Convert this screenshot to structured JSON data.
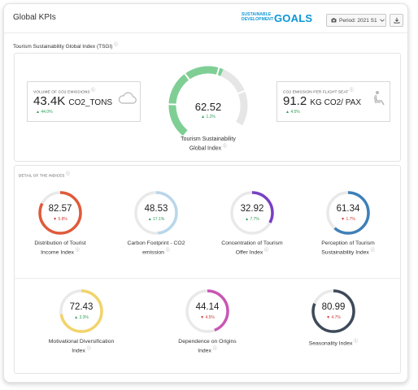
{
  "header": {
    "title": "Global KPIs",
    "logo_line1": "SUSTAINABLE",
    "logo_line2": "DEVELOPMENT",
    "logo_goals": "GOALS",
    "period_label": "Period: 2021 S1"
  },
  "tsgi": {
    "section_title": "Tourism Sustainability Global Index (TSGI)",
    "co2_total": {
      "label": "VOLUME OF CO2 EMISSIONS",
      "value": "43.4K",
      "unit": "CO2_TONS",
      "delta": "44.0%",
      "direction": "up"
    },
    "gauge": {
      "value": "62.52",
      "delta": "1.2%",
      "direction": "up",
      "label_line1": "Tourism Sustainability",
      "label_line2": "Global Index",
      "fraction": 0.6252
    },
    "co2_seat": {
      "label": "CO2 EMISSION PER FLIGHT SEAT",
      "value": "91.2",
      "unit": "KG CO2/ PAX",
      "delta": "4.5%",
      "direction": "up"
    }
  },
  "detail": {
    "section_title": "DETAIL OF THE INDICES",
    "row1": [
      {
        "value": "82.57",
        "delta": "5.8%",
        "direction": "down",
        "label_line1": "Distribution of Tourist",
        "label_line2": "Income Index",
        "color": "#e05a3a"
      },
      {
        "value": "48.53",
        "delta": "17.1%",
        "direction": "up",
        "label_line1": "Carbon Footprint - CO2",
        "label_line2": "emission",
        "color": "#b9d7ea"
      },
      {
        "value": "32.92",
        "delta": "7.7%",
        "direction": "up",
        "label_line1": "Concentration of Tourism",
        "label_line2": "Offer Index",
        "color": "#7a3fc4"
      },
      {
        "value": "61.34",
        "delta": "1.7%",
        "direction": "down",
        "label_line1": "Perception of Tourism",
        "label_line2": "Sustainability Index",
        "color": "#3f7fb8"
      }
    ],
    "row2": [
      {
        "value": "72.43",
        "delta": "3.3%",
        "direction": "up",
        "label_line1": "Motivational Diversification",
        "label_line2": "Index",
        "color": "#f2d46b"
      },
      {
        "value": "44.14",
        "delta": "4.5%",
        "direction": "down",
        "label_line1": "Dependence on Origins",
        "label_line2": "Index",
        "color": "#c856b6"
      },
      {
        "value": "80.99",
        "delta": "4.7%",
        "direction": "down",
        "label_line1": "Seasonality Index",
        "label_line2": "",
        "color": "#3e4a5a"
      }
    ]
  },
  "colors": {
    "accent_green": "#7fcf95",
    "gauge_track": "#e6e6e6",
    "up": "#2e9e5b",
    "down": "#d23a3a",
    "brand_blue": "#0a97d9"
  },
  "icons": [
    "cloud-icon",
    "seat-icon",
    "camera-icon",
    "chevron-down-icon",
    "download-icon",
    "info-icon"
  ]
}
